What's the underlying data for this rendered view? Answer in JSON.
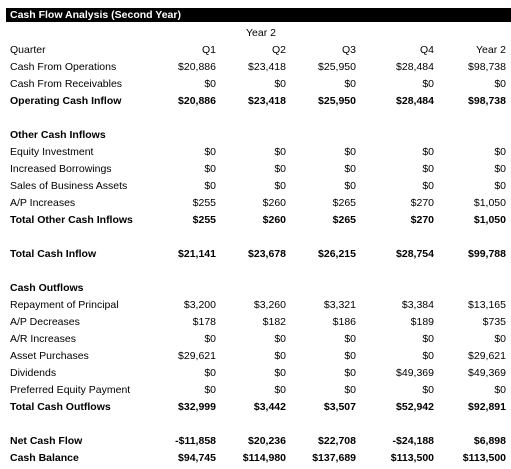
{
  "title": "Cash Flow Analysis (Second Year)",
  "year_header": "Year 2",
  "columns": [
    "Quarter",
    "Q1",
    "Q2",
    "Q3",
    "Q4",
    "Year 2"
  ],
  "rows": [
    {
      "label": "Cash From Operations",
      "values": [
        "$20,886",
        "$23,418",
        "$25,950",
        "$28,484",
        "$98,738"
      ],
      "bold": false
    },
    {
      "label": "Cash From Receivables",
      "values": [
        "$0",
        "$0",
        "$0",
        "$0",
        "$0"
      ],
      "bold": false
    },
    {
      "label": "Operating Cash Inflow",
      "values": [
        "$20,886",
        "$23,418",
        "$25,950",
        "$28,484",
        "$98,738"
      ],
      "bold": true
    },
    {
      "label": "",
      "values": [
        "",
        "",
        "",
        "",
        ""
      ],
      "bold": false
    },
    {
      "label": "Other Cash Inflows",
      "values": [
        "",
        "",
        "",
        "",
        ""
      ],
      "bold": true
    },
    {
      "label": "Equity Investment",
      "values": [
        "$0",
        "$0",
        "$0",
        "$0",
        "$0"
      ],
      "bold": false
    },
    {
      "label": "Increased Borrowings",
      "values": [
        "$0",
        "$0",
        "$0",
        "$0",
        "$0"
      ],
      "bold": false
    },
    {
      "label": "Sales of Business Assets",
      "values": [
        "$0",
        "$0",
        "$0",
        "$0",
        "$0"
      ],
      "bold": false
    },
    {
      "label": "A/P Increases",
      "values": [
        "$255",
        "$260",
        "$265",
        "$270",
        "$1,050"
      ],
      "bold": false
    },
    {
      "label": "Total Other Cash Inflows",
      "values": [
        "$255",
        "$260",
        "$265",
        "$270",
        "$1,050"
      ],
      "bold": true
    },
    {
      "label": "",
      "values": [
        "",
        "",
        "",
        "",
        ""
      ],
      "bold": false
    },
    {
      "label": "Total Cash Inflow",
      "values": [
        "$21,141",
        "$23,678",
        "$26,215",
        "$28,754",
        "$99,788"
      ],
      "bold": true
    },
    {
      "label": "",
      "values": [
        "",
        "",
        "",
        "",
        ""
      ],
      "bold": false
    },
    {
      "label": "Cash Outflows",
      "values": [
        "",
        "",
        "",
        "",
        ""
      ],
      "bold": true
    },
    {
      "label": "Repayment of Principal",
      "values": [
        "$3,200",
        "$3,260",
        "$3,321",
        "$3,384",
        "$13,165"
      ],
      "bold": false
    },
    {
      "label": "A/P Decreases",
      "values": [
        "$178",
        "$182",
        "$186",
        "$189",
        "$735"
      ],
      "bold": false
    },
    {
      "label": "A/R Increases",
      "values": [
        "$0",
        "$0",
        "$0",
        "$0",
        "$0"
      ],
      "bold": false
    },
    {
      "label": "Asset Purchases",
      "values": [
        "$29,621",
        "$0",
        "$0",
        "$0",
        "$29,621"
      ],
      "bold": false
    },
    {
      "label": "Dividends",
      "values": [
        "$0",
        "$0",
        "$0",
        "$49,369",
        "$49,369"
      ],
      "bold": false
    },
    {
      "label": "Preferred Equity Payment",
      "values": [
        "$0",
        "$0",
        "$0",
        "$0",
        "$0"
      ],
      "bold": false
    },
    {
      "label": "Total Cash Outflows",
      "values": [
        "$32,999",
        "$3,442",
        "$3,507",
        "$52,942",
        "$92,891"
      ],
      "bold": true
    },
    {
      "label": "",
      "values": [
        "",
        "",
        "",
        "",
        ""
      ],
      "bold": false
    },
    {
      "label": "Net Cash Flow",
      "values": [
        "-$11,858",
        "$20,236",
        "$22,708",
        "-$24,188",
        "$6,898"
      ],
      "bold": true
    },
    {
      "label": "Cash Balance",
      "values": [
        "$94,745",
        "$114,980",
        "$137,689",
        "$113,500",
        "$113,500"
      ],
      "bold": true
    }
  ]
}
